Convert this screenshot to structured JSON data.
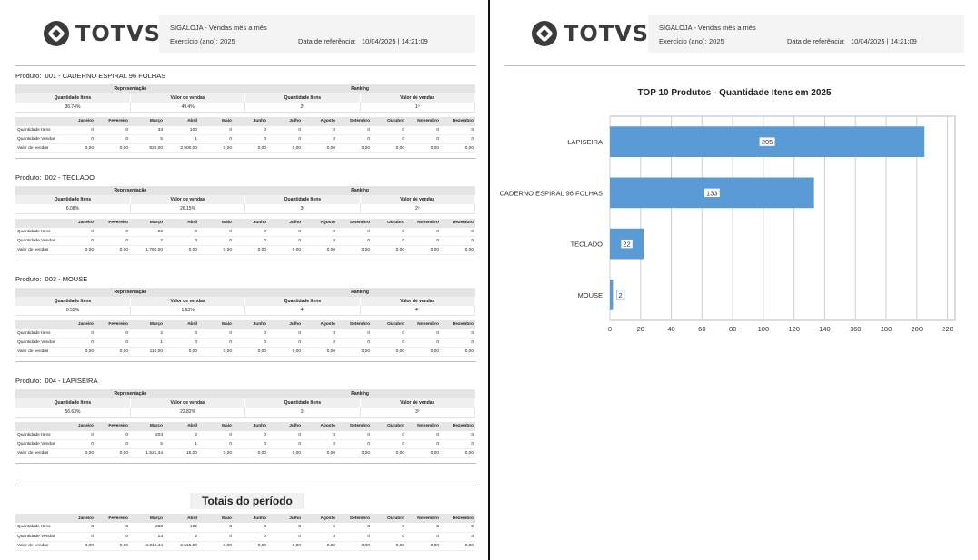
{
  "header": {
    "logo_text": "TOTVS",
    "title": "SIGALOJA - Vendas mês a mês",
    "year_label": "Exercício (ano):",
    "year": "2025",
    "ref_label": "Data de referência:",
    "ref_value": "10/04/2025 | 14:21:09"
  },
  "labels": {
    "produto": "Produto:",
    "representacao": "Representação",
    "ranking": "Ranking",
    "qtd_itens": "Quantidade Itens",
    "valor_vendas": "Valor de vendas",
    "months": [
      "Janeiro",
      "Fevereiro",
      "Março",
      "Abril",
      "Maio",
      "Junho",
      "Julho",
      "Agosto",
      "Setembro",
      "Outubro",
      "Novembro",
      "Dezembro"
    ],
    "rows": [
      "Quantidade Itens",
      "Quantidade Vendas",
      "Valor de vendas"
    ]
  },
  "products": [
    {
      "title": "001 - CADERNO ESPIRAL 96 FOLHAS",
      "rep_qtd": "36.74%",
      "rep_val": "49.4%",
      "rank_qtd": "2º",
      "rank_val": "1º",
      "rows": [
        [
          "0",
          "0",
          "33",
          "100",
          "0",
          "0",
          "0",
          "0",
          "0",
          "0",
          "0",
          "0"
        ],
        [
          "0",
          "0",
          "5",
          "1",
          "0",
          "0",
          "0",
          "0",
          "0",
          "0",
          "0",
          "0"
        ],
        [
          "0,00",
          "0,00",
          "825,00",
          "2.500,00",
          "0,00",
          "0,00",
          "0,00",
          "0,00",
          "0,00",
          "0,00",
          "0,00",
          "0,00"
        ]
      ]
    },
    {
      "title": "002 - TECLADO",
      "rep_qtd": "6.08%",
      "rep_val": "26.15%",
      "rank_qtd": "3º",
      "rank_val": "2º",
      "rows": [
        [
          "0",
          "0",
          "22",
          "0",
          "0",
          "0",
          "0",
          "0",
          "0",
          "0",
          "0",
          "0"
        ],
        [
          "0",
          "0",
          "2",
          "0",
          "0",
          "0",
          "0",
          "0",
          "0",
          "0",
          "0",
          "0"
        ],
        [
          "0,00",
          "0,00",
          "1.760,00",
          "0,00",
          "0,00",
          "0,00",
          "0,00",
          "0,00",
          "0,00",
          "0,00",
          "0,00",
          "0,00"
        ]
      ]
    },
    {
      "title": "003 - MOUSE",
      "rep_qtd": "0.55%",
      "rep_val": "1.63%",
      "rank_qtd": "4º",
      "rank_val": "4º",
      "rows": [
        [
          "0",
          "0",
          "2",
          "0",
          "0",
          "0",
          "0",
          "0",
          "0",
          "0",
          "0",
          "0"
        ],
        [
          "0",
          "0",
          "1",
          "0",
          "0",
          "0",
          "0",
          "0",
          "0",
          "0",
          "0",
          "0"
        ],
        [
          "0,00",
          "0,00",
          "110,00",
          "0,00",
          "0,00",
          "0,00",
          "0,00",
          "0,00",
          "0,00",
          "0,00",
          "0,00",
          "0,00"
        ]
      ]
    },
    {
      "title": "004 - LAPISEIRA",
      "rep_qtd": "56.63%",
      "rep_val": "22.82%",
      "rank_qtd": "1º",
      "rank_val": "3º",
      "rows": [
        [
          "0",
          "0",
          "203",
          "2",
          "0",
          "0",
          "0",
          "0",
          "0",
          "0",
          "0",
          "0"
        ],
        [
          "0",
          "0",
          "5",
          "1",
          "0",
          "0",
          "0",
          "0",
          "0",
          "0",
          "0",
          "0"
        ],
        [
          "0,00",
          "0,00",
          "1.521,44",
          "15,00",
          "0,00",
          "0,00",
          "0,00",
          "0,00",
          "0,00",
          "0,00",
          "0,00",
          "0,00"
        ]
      ]
    }
  ],
  "totals": {
    "title": "Totais do período",
    "rows": [
      [
        "0",
        "0",
        "260",
        "102",
        "0",
        "0",
        "0",
        "0",
        "0",
        "0",
        "0",
        "0"
      ],
      [
        "0",
        "0",
        "13",
        "2",
        "0",
        "0",
        "0",
        "0",
        "0",
        "0",
        "0",
        "0"
      ],
      [
        "0,00",
        "0,00",
        "4.216,44",
        "2.515,00",
        "0,00",
        "0,00",
        "0,00",
        "0,00",
        "0,00",
        "0,00",
        "0,00",
        "0,00"
      ]
    ]
  },
  "chart_data": {
    "type": "bar",
    "orientation": "horizontal",
    "title": "TOP 10 Produtos - Quantidade Itens em 2025",
    "categories": [
      "LAPISEIRA",
      "CADERNO ESPIRAL 96 FOLHAS",
      "TECLADO",
      "MOUSE"
    ],
    "values": [
      205,
      133,
      22,
      2
    ],
    "xlim": [
      0,
      225
    ],
    "ticks": [
      0,
      20,
      40,
      60,
      80,
      100,
      120,
      140,
      160,
      180,
      200,
      220
    ],
    "grid": true,
    "bar_color": "#5b9bd5"
  }
}
